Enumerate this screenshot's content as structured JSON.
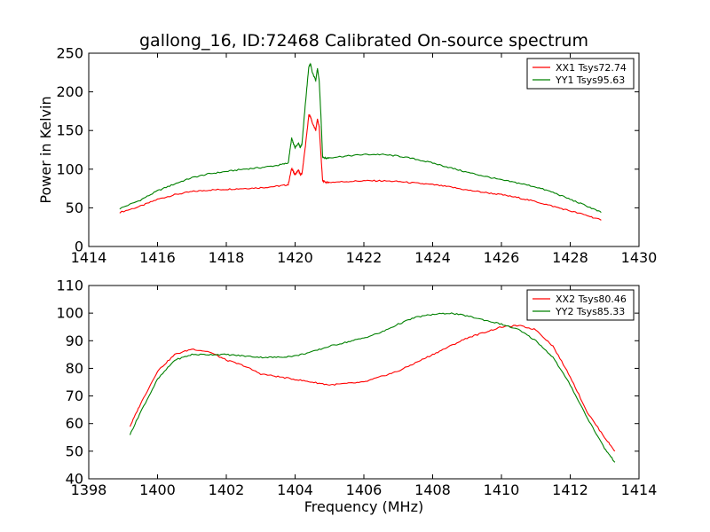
{
  "chart_data": [
    {
      "type": "line",
      "title": "gallong_16, ID:72468 Calibrated On-source spectrum",
      "xlabel": "",
      "ylabel": "Power in Kelvin",
      "xlim": [
        1414,
        1430
      ],
      "ylim": [
        0,
        250
      ],
      "xticks": [
        "1414",
        "1416",
        "1418",
        "1420",
        "1422",
        "1424",
        "1426",
        "1428",
        "1430"
      ],
      "yticks": [
        "0",
        "50",
        "100",
        "150",
        "200",
        "250"
      ],
      "grid": false,
      "legend": "top-right",
      "series": [
        {
          "name": "XX1 Tsys72.74",
          "color": "#ff0000",
          "x": [
            1414.9,
            1415.5,
            1416.0,
            1416.5,
            1417.0,
            1417.5,
            1418.0,
            1418.5,
            1419.0,
            1419.5,
            1419.8,
            1419.9,
            1419.95,
            1420.0,
            1420.1,
            1420.15,
            1420.2,
            1420.3,
            1420.4,
            1420.45,
            1420.5,
            1420.6,
            1420.65,
            1420.7,
            1420.75,
            1420.8,
            1420.9,
            1421.0,
            1421.5,
            1422.0,
            1422.5,
            1423.0,
            1423.5,
            1424.0,
            1424.5,
            1425.0,
            1425.5,
            1426.0,
            1426.5,
            1427.0,
            1427.5,
            1428.0,
            1428.5,
            1428.9
          ],
          "y": [
            44,
            52,
            61,
            67,
            71,
            73,
            74,
            75,
            76,
            78,
            80,
            101,
            97,
            93,
            99,
            93,
            94,
            130,
            170,
            168,
            160,
            150,
            165,
            155,
            120,
            85,
            83,
            83,
            84,
            85,
            85,
            84,
            82,
            80,
            77,
            73,
            70,
            67,
            63,
            58,
            52,
            46,
            40,
            34
          ]
        },
        {
          "name": "YY1 Tsys95.63",
          "color": "#008000",
          "x": [
            1414.9,
            1415.5,
            1416.0,
            1416.5,
            1417.0,
            1417.5,
            1418.0,
            1418.5,
            1419.0,
            1419.5,
            1419.8,
            1419.9,
            1419.95,
            1420.0,
            1420.1,
            1420.15,
            1420.2,
            1420.3,
            1420.4,
            1420.45,
            1420.5,
            1420.6,
            1420.65,
            1420.7,
            1420.75,
            1420.8,
            1420.9,
            1421.0,
            1421.5,
            1422.0,
            1422.5,
            1423.0,
            1423.5,
            1424.0,
            1424.5,
            1425.0,
            1425.5,
            1426.0,
            1426.5,
            1427.0,
            1427.5,
            1428.0,
            1428.5,
            1428.9
          ],
          "y": [
            49,
            60,
            72,
            81,
            89,
            94,
            97,
            100,
            102,
            105,
            108,
            140,
            133,
            128,
            134,
            128,
            133,
            185,
            233,
            236,
            225,
            215,
            230,
            215,
            170,
            116,
            114,
            115,
            117,
            119,
            119,
            117,
            113,
            108,
            102,
            96,
            91,
            86,
            82,
            77,
            70,
            61,
            52,
            44
          ]
        }
      ]
    },
    {
      "type": "line",
      "title": "",
      "xlabel": "Frequency (MHz)",
      "ylabel": "",
      "xlim": [
        1398,
        1414
      ],
      "ylim": [
        40,
        110
      ],
      "xticks": [
        "1398",
        "1400",
        "1402",
        "1404",
        "1406",
        "1408",
        "1410",
        "1412",
        "1414"
      ],
      "yticks": [
        "40",
        "50",
        "60",
        "70",
        "80",
        "90",
        "100",
        "110"
      ],
      "grid": false,
      "legend": "top-right",
      "series": [
        {
          "name": "XX2 Tsys80.46",
          "color": "#ff0000",
          "x": [
            1399.2,
            1399.5,
            1400.0,
            1400.5,
            1401.0,
            1401.5,
            1402.0,
            1402.5,
            1403.0,
            1403.5,
            1404.0,
            1404.5,
            1405.0,
            1405.5,
            1406.0,
            1406.5,
            1407.0,
            1407.5,
            1408.0,
            1408.5,
            1409.0,
            1409.5,
            1410.0,
            1410.5,
            1411.0,
            1411.5,
            1412.0,
            1412.5,
            1413.0,
            1413.3
          ],
          "y": [
            59,
            67,
            79,
            85,
            87,
            86,
            83,
            81,
            78,
            77,
            76,
            75,
            74,
            74.5,
            75,
            77,
            79,
            82,
            85,
            88,
            91,
            93,
            95,
            95.5,
            94,
            88,
            77,
            64,
            55,
            50
          ]
        },
        {
          "name": "YY2 Tsys85.33",
          "color": "#008000",
          "x": [
            1399.2,
            1399.5,
            1400.0,
            1400.5,
            1401.0,
            1401.5,
            1402.0,
            1402.5,
            1403.0,
            1403.5,
            1404.0,
            1404.5,
            1405.0,
            1405.5,
            1406.0,
            1406.5,
            1407.0,
            1407.5,
            1408.0,
            1408.5,
            1409.0,
            1409.5,
            1410.0,
            1410.5,
            1411.0,
            1411.5,
            1412.0,
            1412.5,
            1413.0,
            1413.3
          ],
          "y": [
            56,
            64,
            76,
            83,
            85,
            85,
            85,
            84.5,
            84,
            84,
            84.5,
            86,
            88,
            89.5,
            91,
            93,
            96,
            98.5,
            99.5,
            100,
            99,
            97.5,
            96,
            94,
            90,
            84,
            74,
            62,
            51,
            46
          ]
        }
      ]
    }
  ]
}
